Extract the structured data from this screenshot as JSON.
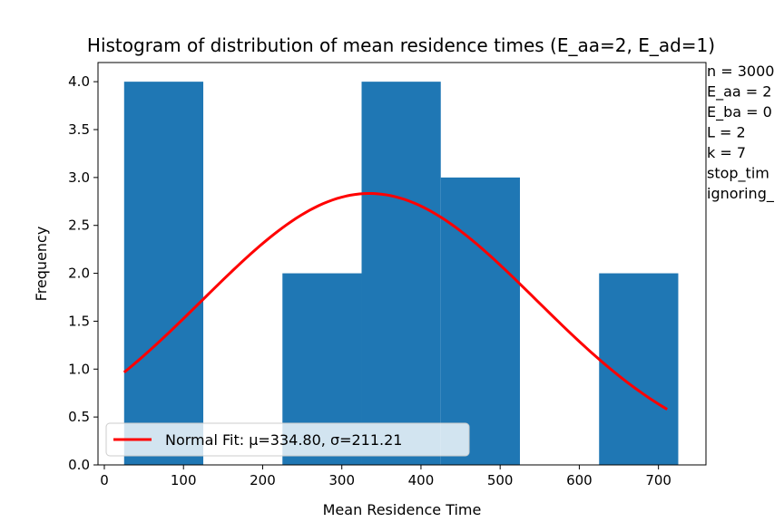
{
  "chart_data": {
    "type": "bar",
    "title": "Histogram of distribution of mean residence times (E_aa=2, E_ad=1)",
    "xlabel": "Mean Residence Time",
    "ylabel": "Frequency",
    "xlim": [
      -8,
      760
    ],
    "ylim": [
      0,
      4.2
    ],
    "xticks": [
      0,
      100,
      200,
      300,
      400,
      500,
      600,
      700
    ],
    "yticks": [
      0.0,
      0.5,
      1.0,
      1.5,
      2.0,
      2.5,
      3.0,
      3.5,
      4.0
    ],
    "ytick_labels": [
      "0.0",
      "0.5",
      "1.0",
      "1.5",
      "2.0",
      "2.5",
      "3.0",
      "3.5",
      "4.0"
    ],
    "bins": [
      {
        "start": 25,
        "end": 125,
        "count": 4
      },
      {
        "start": 125,
        "end": 225,
        "count": 0
      },
      {
        "start": 225,
        "end": 325,
        "count": 2
      },
      {
        "start": 325,
        "end": 425,
        "count": 4
      },
      {
        "start": 425,
        "end": 525,
        "count": 3
      },
      {
        "start": 525,
        "end": 625,
        "count": 0
      },
      {
        "start": 625,
        "end": 725,
        "count": 2
      }
    ],
    "bar_color": "#1f77b4",
    "fit": {
      "name": "Normal Fit: μ=334.80, σ=211.21",
      "mu": 334.8,
      "sigma": 211.21,
      "x_range": [
        25,
        711
      ],
      "scale": 1500,
      "color": "#ff0000"
    },
    "legend_placement": "lower-left",
    "annotations": [
      "n = 3000",
      "E_aa = 2",
      "E_ba = 0",
      "L = 2",
      "k = 7",
      "stop_tim",
      "ignoring_"
    ]
  }
}
